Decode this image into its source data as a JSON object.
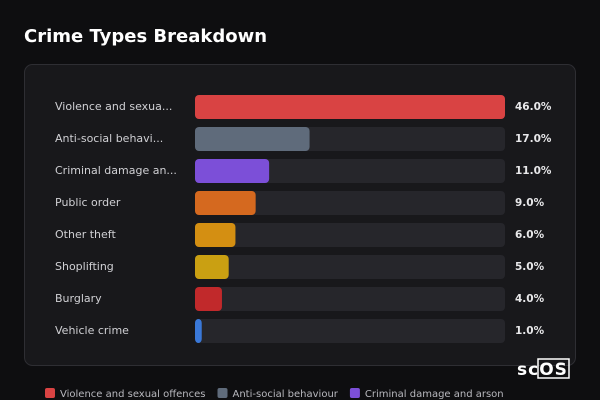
{
  "header": {
    "title": "Crime Types Breakdown"
  },
  "chart_data": {
    "type": "bar",
    "orientation": "horizontal",
    "categories": [
      "Violence and sexua...",
      "Anti-social behavi...",
      "Criminal damage an...",
      "Public order",
      "Other theft",
      "Shoplifting",
      "Burglary",
      "Vehicle crime"
    ],
    "values": [
      46,
      17,
      11,
      9,
      6,
      5,
      4,
      1
    ],
    "value_labels": [
      "46.0%",
      "17.0%",
      "11.0%",
      "9.0%",
      "6.0%",
      "5.0%",
      "4.0%",
      "1.0%"
    ],
    "colors": [
      "#d94343",
      "#5f6b7b",
      "#7c4fd8",
      "#d5691f",
      "#d48f12",
      "#caa012",
      "#c1292b",
      "#3a78d8"
    ],
    "legend": [
      "Violence and sexual offences",
      "Anti-social behaviour",
      "Criminal damage and arson"
    ]
  },
  "brand": "scOS"
}
